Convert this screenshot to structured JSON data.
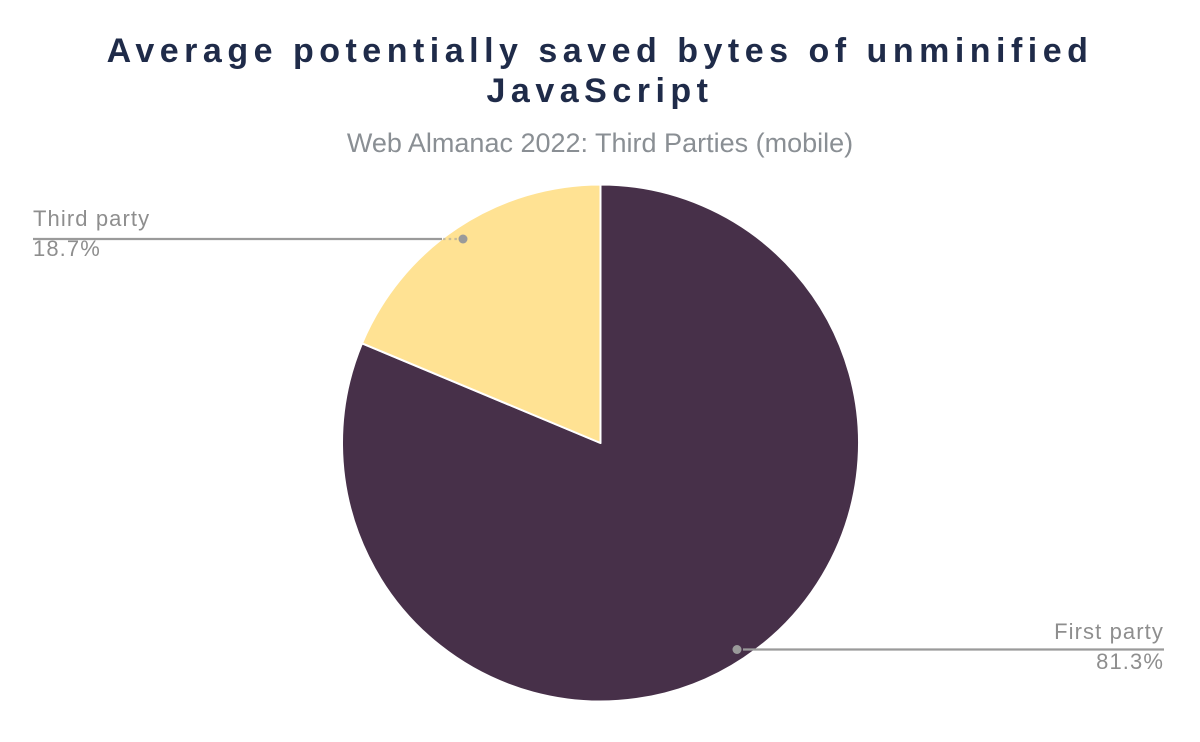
{
  "chart_data": {
    "type": "pie",
    "title": "Average potentially saved bytes of unminified JavaScript",
    "subtitle": "Web Almanac 2022: Third Parties (mobile)",
    "unit": "percent",
    "slices": [
      {
        "label": "First party",
        "value": 81.3,
        "display": "81.3%",
        "color": "#473049"
      },
      {
        "label": "Third party",
        "value": 18.7,
        "display": "18.7%",
        "color": "#ffe293"
      }
    ],
    "start_angle_deg": 0,
    "direction": "clockwise",
    "legend_position": "outside-callouts-with-leader-lines",
    "grid": "off",
    "background": "#ffffff"
  },
  "colors": {
    "title_text": "#1f2b49",
    "subtitle_text": "#8a8f94",
    "label_text": "#8e8e8e",
    "leader_line": "#9a9a9a",
    "anchor_dot": "#9a9a9a",
    "slice_border": "#ffffff",
    "first_party_slice": "#473049",
    "third_party_slice": "#ffe293"
  }
}
